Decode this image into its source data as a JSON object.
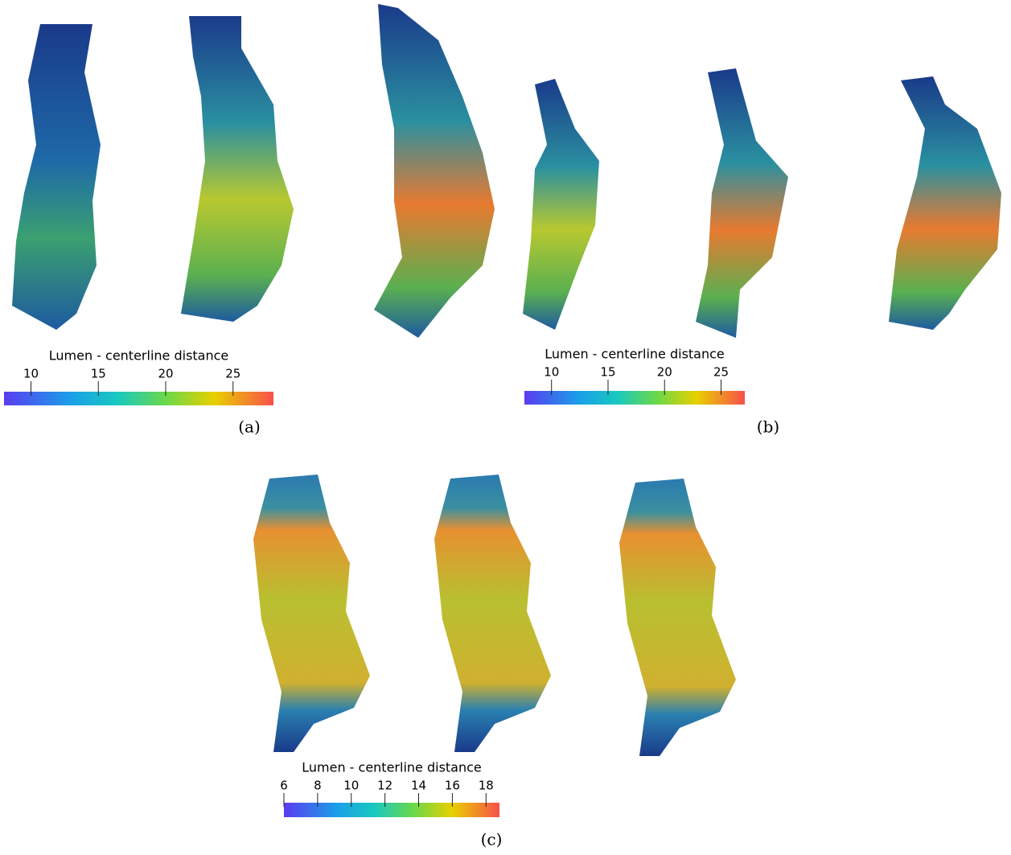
{
  "panels": [
    {
      "label": "(a)",
      "colorbar": {
        "title": "Lumen - centerline distance",
        "range": [
          8,
          28
        ],
        "ticks": [
          10,
          15,
          20,
          25
        ]
      }
    },
    {
      "label": "(b)",
      "colorbar": {
        "title": "Lumen - centerline distance",
        "range": [
          7.6,
          27.1
        ],
        "ticks": [
          10,
          15,
          20,
          25
        ]
      }
    },
    {
      "label": "(c)",
      "colorbar": {
        "title": "Lumen - centerline distance",
        "range": [
          6,
          18.8
        ],
        "ticks": [
          6,
          8,
          10,
          12,
          14,
          16,
          18
        ]
      }
    }
  ]
}
